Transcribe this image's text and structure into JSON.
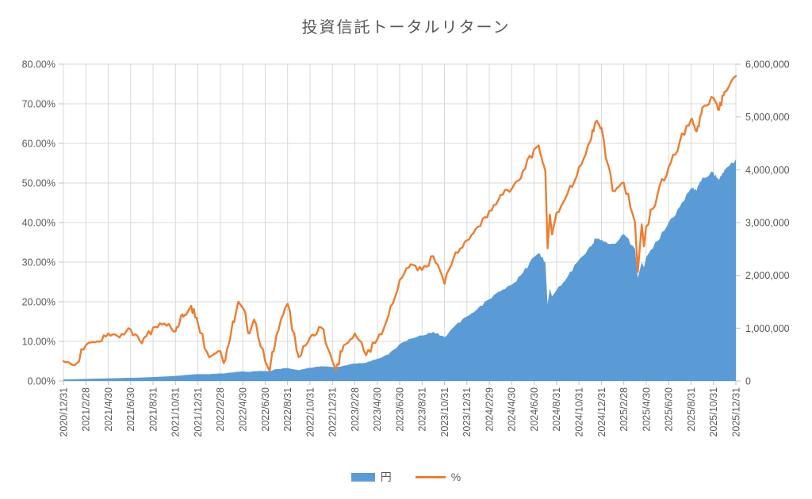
{
  "title": "投資信託トータルリターン",
  "colors": {
    "area_series": "#5B9BD5",
    "line_series": "#ED7D31",
    "gridline": "#D9D9D9",
    "tick": "#BFBFBF",
    "text": "#595959",
    "background": "#FFFFFF"
  },
  "chart_data": {
    "type": "combo",
    "subtype": [
      "area",
      "line"
    ],
    "title": "投資信託トータルリターン",
    "grid": "both",
    "legend_position": "bottom",
    "x_tick_labels": [
      "2020/12/31",
      "2021/2/28",
      "2021/4/30",
      "2021/6/30",
      "2021/8/31",
      "2021/10/31",
      "2021/12/31",
      "2022/2/28",
      "2022/4/30",
      "2022/6/30",
      "2022/8/31",
      "2022/10/31",
      "2022/12/31",
      "2023/2/28",
      "2023/4/30",
      "2023/6/30",
      "2023/8/31",
      "2023/10/31",
      "2023/12/31",
      "2024/2/29",
      "2024/4/30",
      "2024/6/30",
      "2024/8/31",
      "2024/10/31",
      "2024/12/31",
      "2025/2/28",
      "2025/4/30",
      "2025/6/30",
      "2025/8/31",
      "2025/10/31",
      "2025/12/31"
    ],
    "left_axis": {
      "min": 0,
      "max": 80,
      "step": 10,
      "format": "percent",
      "tick_labels": [
        "0.00%",
        "10.00%",
        "20.00%",
        "30.00%",
        "40.00%",
        "50.00%",
        "60.00%",
        "70.00%",
        "80.00%"
      ]
    },
    "right_axis": {
      "min": 0,
      "max": 6000000,
      "step": 1000000,
      "format": "number",
      "tick_labels": [
        "0",
        "1,000,000",
        "2,000,000",
        "3,000,000",
        "4,000,000",
        "5,000,000",
        "6,000,000"
      ]
    },
    "series": [
      {
        "name": "円",
        "type": "area",
        "axis": "right",
        "color": "#5B9BD5"
      },
      {
        "name": "%",
        "type": "line",
        "axis": "left",
        "color": "#ED7D31"
      }
    ],
    "points_schema": [
      "months_since_2020/12/31",
      "pct_left_axis",
      "yen_right_axis"
    ],
    "points": [
      [
        0,
        5.0,
        30000
      ],
      [
        1,
        4.0,
        33000
      ],
      [
        2,
        9.0,
        40000
      ],
      [
        3,
        10.0,
        45000
      ],
      [
        4,
        12.0,
        50000
      ],
      [
        5,
        11.0,
        55000
      ],
      [
        6,
        13.0,
        60000
      ],
      [
        7,
        9.5,
        65000
      ],
      [
        8,
        13.5,
        75000
      ],
      [
        9,
        14.5,
        85000
      ],
      [
        10,
        12.5,
        95000
      ],
      [
        10.5,
        16.5,
        105000
      ],
      [
        11,
        17.0,
        115000
      ],
      [
        11.4,
        19.0,
        122000
      ],
      [
        12,
        14.5,
        130000
      ],
      [
        13,
        6.0,
        128000
      ],
      [
        14,
        7.5,
        145000
      ],
      [
        14.3,
        4.5,
        140000
      ],
      [
        15,
        13.0,
        160000
      ],
      [
        15.6,
        20.0,
        175000
      ],
      [
        16,
        18.5,
        180000
      ],
      [
        16.6,
        12.0,
        170000
      ],
      [
        17,
        15.5,
        185000
      ],
      [
        18,
        5.0,
        190000
      ],
      [
        18.4,
        2.5,
        185000
      ],
      [
        19,
        11.5,
        225000
      ],
      [
        20,
        19.5,
        245000
      ],
      [
        21,
        6.0,
        205000
      ],
      [
        22,
        11.0,
        250000
      ],
      [
        23,
        13.5,
        280000
      ],
      [
        24,
        5.0,
        265000
      ],
      [
        24.3,
        2.8,
        255000
      ],
      [
        25,
        9.0,
        290000
      ],
      [
        26,
        12.0,
        330000
      ],
      [
        27,
        6.5,
        345000
      ],
      [
        28,
        10.5,
        420000
      ],
      [
        29,
        16.5,
        500000
      ],
      [
        30,
        25.5,
        700000
      ],
      [
        31,
        29.5,
        800000
      ],
      [
        32,
        28.0,
        860000
      ],
      [
        33,
        31.5,
        930000
      ],
      [
        34,
        24.5,
        830000
      ],
      [
        35,
        32.5,
        1060000
      ],
      [
        36,
        35.5,
        1220000
      ],
      [
        37,
        39.0,
        1380000
      ],
      [
        38,
        43.0,
        1550000
      ],
      [
        39,
        47.0,
        1700000
      ],
      [
        40,
        48.5,
        1820000
      ],
      [
        41,
        53.0,
        2050000
      ],
      [
        42,
        58.5,
        2350000
      ],
      [
        42.4,
        59.5,
        2420000
      ],
      [
        43,
        53.0,
        2250000
      ],
      [
        43.2,
        33.5,
        1450000
      ],
      [
        43.4,
        42.0,
        1750000
      ],
      [
        43.6,
        37.0,
        1600000
      ],
      [
        44,
        42.5,
        1720000
      ],
      [
        45,
        47.5,
        1980000
      ],
      [
        46,
        54.0,
        2290000
      ],
      [
        47,
        60.5,
        2550000
      ],
      [
        47.5,
        65.5,
        2700000
      ],
      [
        48,
        64.0,
        2680000
      ],
      [
        49,
        48.0,
        2600000
      ],
      [
        50,
        50.0,
        2780000
      ],
      [
        51,
        40.0,
        2500000
      ],
      [
        51.25,
        27.5,
        1950000
      ],
      [
        51.6,
        39.5,
        2250000
      ],
      [
        51.8,
        34.0,
        2150000
      ],
      [
        52,
        39.0,
        2350000
      ],
      [
        53,
        47.0,
        2650000
      ],
      [
        54,
        54.0,
        3000000
      ],
      [
        55,
        60.5,
        3300000
      ],
      [
        56,
        66.0,
        3650000
      ],
      [
        56.5,
        63.0,
        3600000
      ],
      [
        57,
        69.0,
        3850000
      ],
      [
        58,
        71.5,
        3950000
      ],
      [
        58.5,
        68.5,
        3800000
      ],
      [
        59,
        73.0,
        4000000
      ],
      [
        60,
        77.0,
        4200000
      ]
    ]
  }
}
